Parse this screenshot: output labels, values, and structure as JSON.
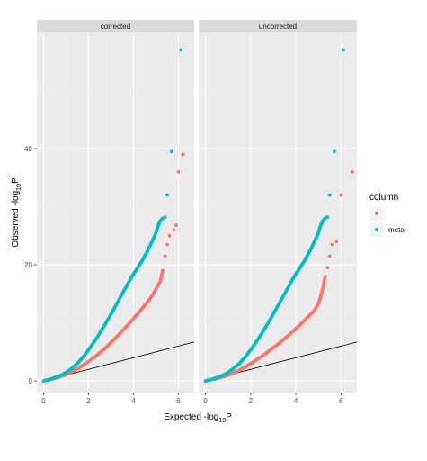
{
  "chart_data": {
    "type": "scatter",
    "facets": [
      {
        "label": "corrected",
        "series": [
          {
            "name": "",
            "color": "#F8766D",
            "points": [
              [
                0,
                0
              ],
              [
                0.3,
                0.25
              ],
              [
                0.6,
                0.55
              ],
              [
                0.9,
                0.95
              ],
              [
                1.2,
                1.45
              ],
              [
                1.5,
                2.05
              ],
              [
                1.8,
                2.8
              ],
              [
                2.1,
                3.6
              ],
              [
                2.4,
                4.5
              ],
              [
                2.7,
                5.5
              ],
              [
                3.0,
                6.6
              ],
              [
                3.3,
                7.8
              ],
              [
                3.6,
                9.0
              ],
              [
                3.9,
                10.3
              ],
              [
                4.2,
                11.6
              ],
              [
                4.5,
                13.0
              ],
              [
                4.8,
                14.5
              ],
              [
                5.0,
                15.8
              ],
              [
                5.2,
                17.2
              ],
              [
                5.3,
                19.0
              ],
              [
                5.4,
                21.5
              ],
              [
                5.5,
                23.5
              ],
              [
                5.6,
                25.0
              ],
              [
                5.8,
                26.0
              ],
              [
                5.9,
                26.8
              ],
              [
                6.0,
                36.0
              ],
              [
                6.2,
                39.0
              ]
            ]
          },
          {
            "name": "meta",
            "color": "#00BFC4",
            "points": [
              [
                0,
                0
              ],
              [
                0.3,
                0.3
              ],
              [
                0.6,
                0.7
              ],
              [
                0.9,
                1.2
              ],
              [
                1.2,
                2.0
              ],
              [
                1.5,
                3.0
              ],
              [
                1.8,
                4.3
              ],
              [
                2.1,
                5.9
              ],
              [
                2.4,
                7.6
              ],
              [
                2.7,
                9.5
              ],
              [
                3.0,
                11.5
              ],
              [
                3.3,
                13.6
              ],
              [
                3.6,
                15.7
              ],
              [
                3.9,
                17.8
              ],
              [
                4.2,
                19.6
              ],
              [
                4.4,
                20.8
              ],
              [
                4.6,
                22.2
              ],
              [
                4.8,
                23.8
              ],
              [
                5.0,
                25.5
              ],
              [
                5.1,
                26.8
              ],
              [
                5.2,
                27.6
              ],
              [
                5.3,
                28.0
              ],
              [
                5.4,
                28.2
              ],
              [
                5.5,
                32.0
              ],
              [
                5.7,
                39.5
              ],
              [
                6.1,
                57.0
              ]
            ]
          }
        ],
        "reference_line": [
          [
            0,
            0
          ],
          [
            6.7,
            6.7
          ]
        ]
      },
      {
        "label": "uncorrected",
        "series": [
          {
            "name": "",
            "color": "#F8766D",
            "points": [
              [
                0,
                0
              ],
              [
                0.3,
                0.25
              ],
              [
                0.6,
                0.5
              ],
              [
                0.9,
                0.85
              ],
              [
                1.2,
                1.3
              ],
              [
                1.5,
                1.85
              ],
              [
                1.8,
                2.5
              ],
              [
                2.1,
                3.2
              ],
              [
                2.4,
                4.0
              ],
              [
                2.7,
                4.8
              ],
              [
                3.0,
                5.7
              ],
              [
                3.3,
                6.6
              ],
              [
                3.6,
                7.6
              ],
              [
                3.9,
                8.6
              ],
              [
                4.2,
                9.7
              ],
              [
                4.5,
                10.9
              ],
              [
                4.8,
                12.0
              ],
              [
                5.0,
                13.3
              ],
              [
                5.1,
                14.5
              ],
              [
                5.2,
                16.0
              ],
              [
                5.3,
                18.0
              ],
              [
                5.4,
                19.5
              ],
              [
                5.5,
                21.5
              ],
              [
                5.6,
                23.5
              ],
              [
                5.8,
                24.0
              ],
              [
                6.0,
                32.0
              ],
              [
                6.5,
                36.0
              ]
            ]
          },
          {
            "name": "meta",
            "color": "#00BFC4",
            "points": [
              [
                0,
                0
              ],
              [
                0.3,
                0.3
              ],
              [
                0.6,
                0.7
              ],
              [
                0.9,
                1.2
              ],
              [
                1.2,
                2.0
              ],
              [
                1.5,
                3.0
              ],
              [
                1.8,
                4.3
              ],
              [
                2.1,
                5.9
              ],
              [
                2.4,
                7.6
              ],
              [
                2.7,
                9.5
              ],
              [
                3.0,
                11.5
              ],
              [
                3.3,
                13.6
              ],
              [
                3.6,
                15.7
              ],
              [
                3.9,
                17.8
              ],
              [
                4.2,
                19.6
              ],
              [
                4.4,
                20.8
              ],
              [
                4.6,
                22.2
              ],
              [
                4.8,
                23.8
              ],
              [
                5.0,
                25.5
              ],
              [
                5.1,
                26.8
              ],
              [
                5.2,
                27.6
              ],
              [
                5.3,
                28.0
              ],
              [
                5.4,
                28.2
              ],
              [
                5.5,
                32.0
              ],
              [
                5.7,
                39.5
              ],
              [
                6.1,
                57.0
              ]
            ]
          }
        ],
        "reference_line": [
          [
            0,
            0
          ],
          [
            6.7,
            6.7
          ]
        ]
      }
    ],
    "xlabel_main": "Expected -log",
    "xlabel_sub": "10",
    "xlabel_tail": "P",
    "ylabel_main": "Observed -log",
    "ylabel_sub": "10",
    "ylabel_tail": "P",
    "xticks": [
      0,
      2,
      4,
      6
    ],
    "yticks": [
      0,
      20,
      40
    ],
    "xlim": [
      -0.3,
      6.7
    ],
    "ylim": [
      -2,
      60
    ],
    "grid": true,
    "legend": {
      "title": "column",
      "position": "right",
      "entries": [
        {
          "label": "",
          "color": "#F8766D"
        },
        {
          "label": "meta",
          "color": "#00BFC4"
        }
      ]
    }
  }
}
